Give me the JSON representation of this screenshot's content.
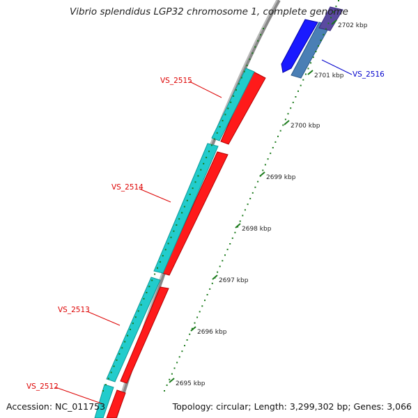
{
  "title": "Vibrio splendidus LGP32 chromosome 1, complete genome",
  "accession": "Accession: NC_011753",
  "stats": "Topology: circular; Length: 3,299,302 bp; Genes: 3,066",
  "kbp_ticks": [
    {
      "label": "2695 kbp"
    },
    {
      "label": "2696 kbp"
    },
    {
      "label": "2697 kbp"
    },
    {
      "label": "2698 kbp"
    },
    {
      "label": "2699 kbp"
    },
    {
      "label": "2700 kbp"
    },
    {
      "label": "2701 kbp"
    },
    {
      "label": "2702 kbp"
    }
  ],
  "gene_labels": [
    {
      "text": "VS_2512",
      "strand": "reverse"
    },
    {
      "text": "VS_2513",
      "strand": "reverse"
    },
    {
      "text": "VS_2514",
      "strand": "reverse"
    },
    {
      "text": "VS_2515",
      "strand": "reverse"
    },
    {
      "text": "VS_2516",
      "strand": "forward"
    }
  ],
  "colors": {
    "reverse_cds": "#ff1a1a",
    "reverse_gene": "#22cccc",
    "forward_cds": "#1a1aff",
    "forward_gene": "#4a7fb5",
    "reverse_label": "#dd0000",
    "forward_label": "#0000cc",
    "tick": "#1a7a1a",
    "backbone": "#888888"
  }
}
